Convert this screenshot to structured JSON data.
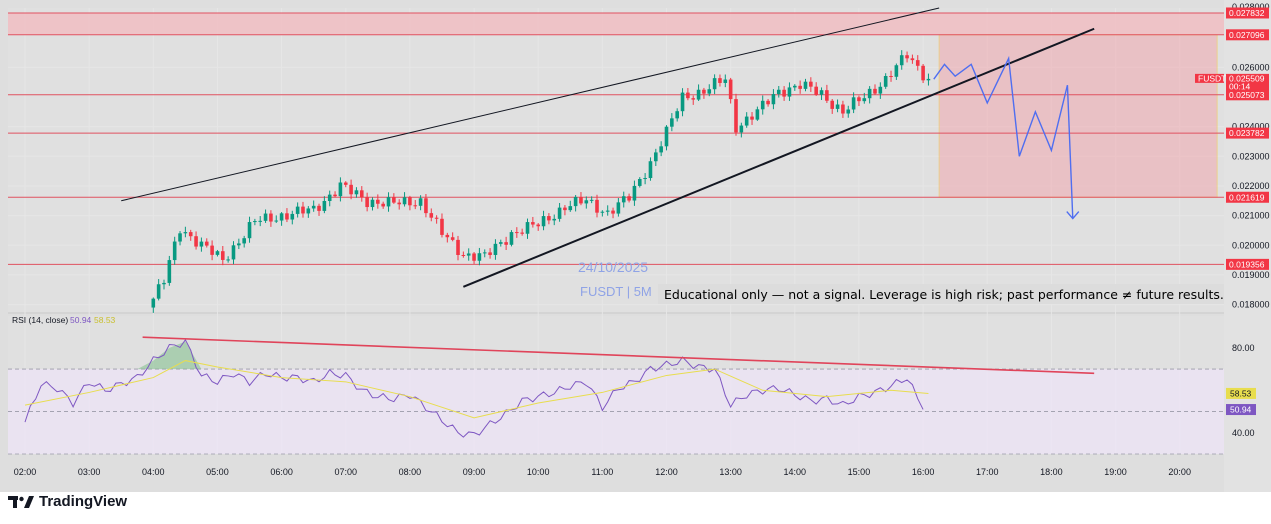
{
  "chart_data": {
    "type": "candlestick",
    "symbol_badge": "FUSDT",
    "countdown": "00:14",
    "watermark_date": "24/10/2025",
    "watermark_symbol": "FUSDT | 5M",
    "disclaimer": "Educational only — not a signal. Leverage is high risk; past performance ≠ future results.",
    "price_axis": {
      "ticks": [
        "0.026000",
        "0.024000",
        "0.023000",
        "0.022000",
        "0.021000",
        "0.020000",
        "0.019000",
        "0.018000"
      ],
      "tick_values": [
        0.026,
        0.024,
        0.023,
        0.022,
        0.021,
        0.02,
        0.019,
        0.018
      ],
      "top_partial": "0.028000",
      "range": [
        0.01775,
        0.028
      ]
    },
    "levels": [
      {
        "label": "0.027832",
        "value": 0.027832
      },
      {
        "label": "0.027096",
        "value": 0.027096
      },
      {
        "label": "0.025509",
        "value": 0.025509
      },
      {
        "label": "0.025073",
        "value": 0.025073
      },
      {
        "label": "0.023782",
        "value": 0.023782
      },
      {
        "label": "0.021619",
        "value": 0.021619
      },
      {
        "label": "0.019356",
        "value": 0.019356
      }
    ],
    "time_axis": {
      "labels": [
        "02:00",
        "03:00",
        "04:00",
        "05:00",
        "06:00",
        "07:00",
        "08:00",
        "09:00",
        "10:00",
        "11:00",
        "12:00",
        "13:00",
        "14:00",
        "15:00",
        "16:00",
        "17:00",
        "18:00",
        "19:00",
        "20:00"
      ]
    },
    "close_path": [
      {
        "t": "03:55",
        "v": 0.0179
      },
      {
        "t": "04:10",
        "v": 0.0188
      },
      {
        "t": "04:25",
        "v": 0.0206
      },
      {
        "t": "04:45",
        "v": 0.02
      },
      {
        "t": "05:05",
        "v": 0.0195
      },
      {
        "t": "05:35",
        "v": 0.0208
      },
      {
        "t": "06:00",
        "v": 0.021
      },
      {
        "t": "06:30",
        "v": 0.0212
      },
      {
        "t": "06:55",
        "v": 0.022
      },
      {
        "t": "07:20",
        "v": 0.0215
      },
      {
        "t": "07:45",
        "v": 0.0214
      },
      {
        "t": "08:10",
        "v": 0.0215
      },
      {
        "t": "08:30",
        "v": 0.0204
      },
      {
        "t": "08:50",
        "v": 0.0197
      },
      {
        "t": "09:10",
        "v": 0.0196
      },
      {
        "t": "09:35",
        "v": 0.0204
      },
      {
        "t": "10:00",
        "v": 0.0207
      },
      {
        "t": "10:25",
        "v": 0.0213
      },
      {
        "t": "10:45",
        "v": 0.0215
      },
      {
        "t": "11:05",
        "v": 0.0211
      },
      {
        "t": "11:25",
        "v": 0.0216
      },
      {
        "t": "11:45",
        "v": 0.0228
      },
      {
        "t": "12:00",
        "v": 0.0238
      },
      {
        "t": "12:15",
        "v": 0.025
      },
      {
        "t": "12:35",
        "v": 0.0252
      },
      {
        "t": "12:55",
        "v": 0.0256
      },
      {
        "t": "13:05",
        "v": 0.024
      },
      {
        "t": "13:25",
        "v": 0.0245
      },
      {
        "t": "13:45",
        "v": 0.0252
      },
      {
        "t": "14:05",
        "v": 0.0254
      },
      {
        "t": "14:25",
        "v": 0.0251
      },
      {
        "t": "14:45",
        "v": 0.0245
      },
      {
        "t": "15:05",
        "v": 0.025
      },
      {
        "t": "15:25",
        "v": 0.0256
      },
      {
        "t": "15:45",
        "v": 0.0264
      },
      {
        "t": "16:05",
        "v": 0.0256
      }
    ],
    "projection": [
      {
        "t": "16:10",
        "v": 0.0256
      },
      {
        "t": "16:20",
        "v": 0.0261
      },
      {
        "t": "16:30",
        "v": 0.0257
      },
      {
        "t": "16:45",
        "v": 0.0261
      },
      {
        "t": "17:00",
        "v": 0.0248
      },
      {
        "t": "17:20",
        "v": 0.0263
      },
      {
        "t": "17:30",
        "v": 0.023
      },
      {
        "t": "17:45",
        "v": 0.0245
      },
      {
        "t": "18:00",
        "v": 0.0232
      },
      {
        "t": "18:15",
        "v": 0.0254
      },
      {
        "t": "18:20",
        "v": 0.0209
      }
    ],
    "trendlines": [
      {
        "name": "upper-channel",
        "from": {
          "t": "03:30",
          "v": 0.0215
        },
        "to": {
          "t": "16:15",
          "v": 0.028
        }
      },
      {
        "name": "rising-support",
        "from": {
          "t": "08:50",
          "v": 0.0186
        },
        "to": {
          "t": "18:40",
          "v": 0.0273
        }
      }
    ],
    "short_zone": {
      "t_from": "16:15",
      "t_to": "20:35",
      "v_top": 0.027096,
      "v_bottom": 0.021619
    },
    "resistance_band": {
      "v_top": 0.027832,
      "v_bottom": 0.027096
    },
    "rsi": {
      "label": "RSI (14, close)",
      "value": "50.94",
      "ma_value": "58.53",
      "range": [
        30,
        95
      ],
      "ticks": [
        "80.00",
        "40.00"
      ],
      "tick_values": [
        80,
        40
      ],
      "bands": {
        "upper": 70,
        "middle": 50,
        "lower": 30
      },
      "values": [
        {
          "t": "02:00",
          "v": 45
        },
        {
          "t": "02:15",
          "v": 63
        },
        {
          "t": "02:30",
          "v": 61
        },
        {
          "t": "02:45",
          "v": 54
        },
        {
          "t": "03:00",
          "v": 64
        },
        {
          "t": "03:15",
          "v": 60
        },
        {
          "t": "03:30",
          "v": 63
        },
        {
          "t": "03:45",
          "v": 66
        },
        {
          "t": "04:00",
          "v": 74
        },
        {
          "t": "04:15",
          "v": 80
        },
        {
          "t": "04:30",
          "v": 83
        },
        {
          "t": "04:45",
          "v": 67
        },
        {
          "t": "05:00",
          "v": 64
        },
        {
          "t": "05:15",
          "v": 68
        },
        {
          "t": "05:30",
          "v": 64
        },
        {
          "t": "05:45",
          "v": 68
        },
        {
          "t": "06:00",
          "v": 66
        },
        {
          "t": "06:15",
          "v": 66
        },
        {
          "t": "06:30",
          "v": 64
        },
        {
          "t": "06:45",
          "v": 68
        },
        {
          "t": "07:00",
          "v": 67
        },
        {
          "t": "07:15",
          "v": 60
        },
        {
          "t": "07:30",
          "v": 57
        },
        {
          "t": "07:45",
          "v": 56
        },
        {
          "t": "08:00",
          "v": 58
        },
        {
          "t": "08:15",
          "v": 52
        },
        {
          "t": "08:30",
          "v": 46
        },
        {
          "t": "08:45",
          "v": 40
        },
        {
          "t": "09:00",
          "v": 39
        },
        {
          "t": "09:15",
          "v": 44
        },
        {
          "t": "09:30",
          "v": 49
        },
        {
          "t": "09:45",
          "v": 55
        },
        {
          "t": "10:00",
          "v": 57
        },
        {
          "t": "10:15",
          "v": 59
        },
        {
          "t": "10:30",
          "v": 62
        },
        {
          "t": "10:45",
          "v": 64
        },
        {
          "t": "11:00",
          "v": 52
        },
        {
          "t": "11:15",
          "v": 61
        },
        {
          "t": "11:30",
          "v": 64
        },
        {
          "t": "11:45",
          "v": 70
        },
        {
          "t": "12:00",
          "v": 72
        },
        {
          "t": "12:15",
          "v": 74
        },
        {
          "t": "12:30",
          "v": 71
        },
        {
          "t": "12:45",
          "v": 70
        },
        {
          "t": "13:00",
          "v": 53
        },
        {
          "t": "13:15",
          "v": 58
        },
        {
          "t": "13:30",
          "v": 60
        },
        {
          "t": "13:45",
          "v": 61
        },
        {
          "t": "14:00",
          "v": 58
        },
        {
          "t": "14:15",
          "v": 55
        },
        {
          "t": "14:30",
          "v": 56
        },
        {
          "t": "14:45",
          "v": 53
        },
        {
          "t": "15:00",
          "v": 57
        },
        {
          "t": "15:15",
          "v": 59
        },
        {
          "t": "15:30",
          "v": 62
        },
        {
          "t": "15:45",
          "v": 66
        },
        {
          "t": "16:00",
          "v": 51
        }
      ],
      "ma_values": [
        {
          "t": "02:00",
          "v": 53
        },
        {
          "t": "03:00",
          "v": 59
        },
        {
          "t": "04:00",
          "v": 66
        },
        {
          "t": "04:30",
          "v": 74
        },
        {
          "t": "05:00",
          "v": 71
        },
        {
          "t": "06:00",
          "v": 66
        },
        {
          "t": "07:00",
          "v": 64
        },
        {
          "t": "08:00",
          "v": 57
        },
        {
          "t": "09:00",
          "v": 47
        },
        {
          "t": "10:00",
          "v": 54
        },
        {
          "t": "11:00",
          "v": 59
        },
        {
          "t": "12:00",
          "v": 67
        },
        {
          "t": "12:45",
          "v": 70
        },
        {
          "t": "13:30",
          "v": 60
        },
        {
          "t": "14:30",
          "v": 57
        },
        {
          "t": "15:30",
          "v": 60
        },
        {
          "t": "16:05",
          "v": 58.5
        }
      ],
      "divergence_line": {
        "from": {
          "t": "03:50",
          "v": 85
        },
        "to": {
          "t": "18:40",
          "v": 68
        }
      }
    }
  },
  "colors": {
    "up_candle": "#089981",
    "down_candle": "#f23645",
    "level_line": "#e05260",
    "badge_red": "#f23645",
    "zone_fill": "#f2a9b0",
    "zone_border": "#f5c24a",
    "projection_line": "#4f6ef0",
    "rsi_line": "#7e57c2",
    "rsi_ma": "#e8dd4e",
    "rsi_band": "#ede4f7",
    "divergence": "#e0445a",
    "grid": "#e6e6e6"
  },
  "brand": {
    "name": "TradingView"
  }
}
